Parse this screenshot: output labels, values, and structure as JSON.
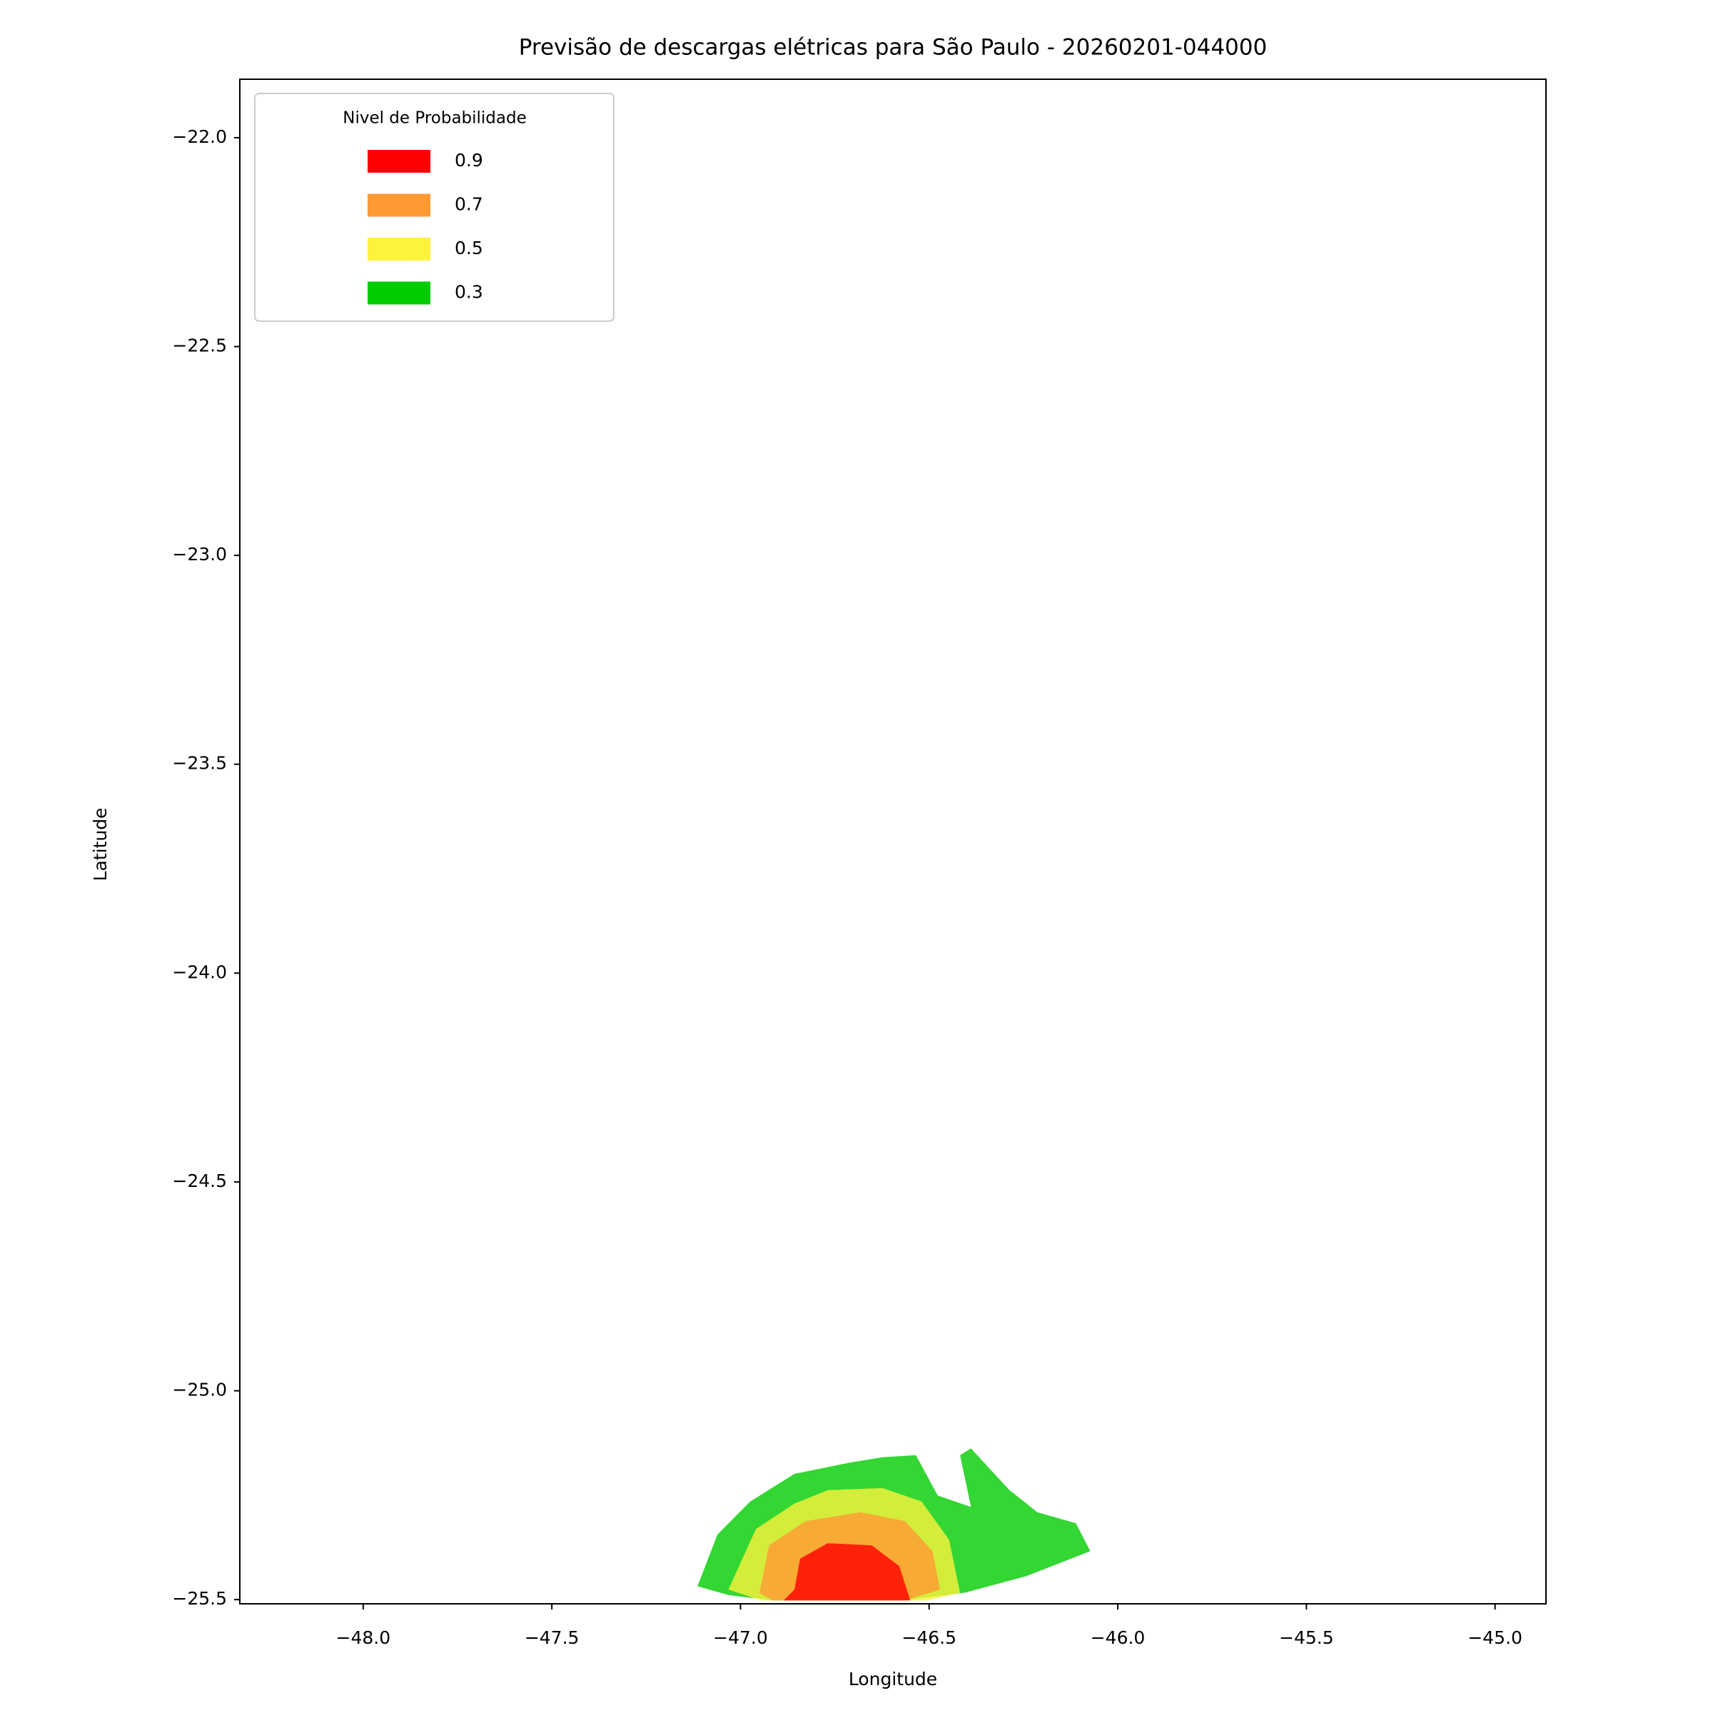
{
  "chart_data": {
    "type": "contour",
    "title": "Previsão de descargas elétricas para São Paulo - 20260201-044000",
    "xlabel": "Longitude",
    "ylabel": "Latitude",
    "legend_title": "Nivel de Probabilidade",
    "legend": "upper left",
    "xlim": [
      -48.327,
      -44.865
    ],
    "ylim": [
      -25.51,
      -21.86
    ],
    "xticks": [
      {
        "value": -48.0,
        "label": "−48.0"
      },
      {
        "value": -47.5,
        "label": "−47.5"
      },
      {
        "value": -47.0,
        "label": "−47.0"
      },
      {
        "value": -46.5,
        "label": "−46.5"
      },
      {
        "value": -46.0,
        "label": "−46.0"
      },
      {
        "value": -45.5,
        "label": "−45.5"
      },
      {
        "value": -45.0,
        "label": "−45.0"
      }
    ],
    "yticks": [
      {
        "value": -22.0,
        "label": "−22.0"
      },
      {
        "value": -22.5,
        "label": "−22.5"
      },
      {
        "value": -23.0,
        "label": "−23.0"
      },
      {
        "value": -23.5,
        "label": "−23.5"
      },
      {
        "value": -24.0,
        "label": "−24.0"
      },
      {
        "value": -24.5,
        "label": "−24.5"
      },
      {
        "value": -25.0,
        "label": "−25.0"
      },
      {
        "value": -25.5,
        "label": "−25.5"
      }
    ],
    "series": [
      {
        "name": "0.9",
        "color": "#ff0000",
        "lon": [
          -46.886,
          -46.857,
          -46.842,
          -46.769,
          -46.652,
          -46.579,
          -46.55,
          -46.681
        ],
        "lat": [
          -25.502,
          -25.476,
          -25.402,
          -25.365,
          -25.37,
          -25.42,
          -25.502,
          -25.502
        ]
      },
      {
        "name": "0.7",
        "color": "#ff9933",
        "lon": [
          -46.95,
          -46.924,
          -46.827,
          -46.681,
          -46.564,
          -46.491,
          -46.471,
          -46.564,
          -46.915
        ],
        "lat": [
          -25.484,
          -25.37,
          -25.312,
          -25.291,
          -25.312,
          -25.384,
          -25.476,
          -25.502,
          -25.502
        ]
      },
      {
        "name": "0.5",
        "color": "#fdf23c",
        "lon": [
          -47.032,
          -46.959,
          -46.857,
          -46.769,
          -46.623,
          -46.52,
          -46.447,
          -46.418,
          -46.506,
          -46.944
        ],
        "lat": [
          -25.476,
          -25.331,
          -25.27,
          -25.238,
          -25.233,
          -25.265,
          -25.357,
          -25.484,
          -25.502,
          -25.502
        ]
      },
      {
        "name": "0.3",
        "color": "#00cc00",
        "lon": [
          -47.114,
          -47.061,
          -46.974,
          -46.857,
          -46.711,
          -46.623,
          -46.535,
          -46.477,
          -46.389,
          -46.418,
          -46.389,
          -46.287,
          -46.213,
          -46.111,
          -46.073,
          -46.243,
          -46.404,
          -46.564,
          -46.915,
          -47.032
        ],
        "lat": [
          -25.468,
          -25.344,
          -25.265,
          -25.199,
          -25.172,
          -25.159,
          -25.154,
          -25.251,
          -25.278,
          -25.154,
          -25.138,
          -25.238,
          -25.291,
          -25.317,
          -25.384,
          -25.444,
          -25.483,
          -25.502,
          -25.502,
          -25.489
        ]
      }
    ]
  }
}
